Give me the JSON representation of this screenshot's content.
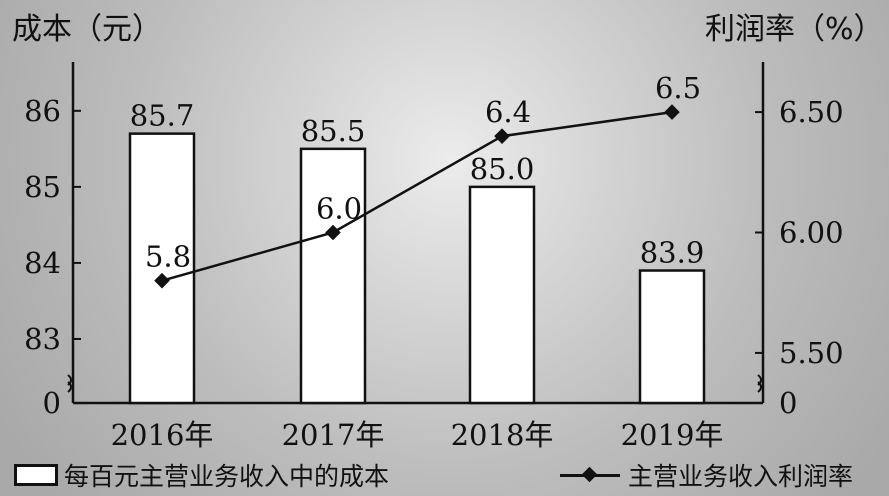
{
  "chart_data": {
    "type": "bar+line",
    "categories": [
      "2016年",
      "2017年",
      "2018年",
      "2019年"
    ],
    "left_axis": {
      "title": "成本（元）",
      "ticks": [
        0,
        83,
        84,
        85,
        86
      ],
      "range": [
        82.5,
        86.3
      ],
      "broken": true
    },
    "right_axis": {
      "title": "利润率（%）",
      "ticks": [
        "0",
        "5.50",
        "6.00",
        "6.50"
      ],
      "range": [
        5.4,
        6.6
      ],
      "broken": true
    },
    "series": [
      {
        "name": "每百元主营业务收入中的成本",
        "type": "bar",
        "axis": "left",
        "values": [
          85.7,
          85.5,
          85.0,
          83.9
        ],
        "labels": [
          "85.7",
          "85.5",
          "85.0",
          "83.9"
        ]
      },
      {
        "name": "主营业务收入利润率",
        "type": "line",
        "axis": "right",
        "values": [
          5.8,
          6.0,
          6.4,
          6.5
        ],
        "labels": [
          "5.8",
          "6.0",
          "6.4",
          "6.5"
        ]
      }
    ],
    "legend_position": "bottom",
    "grid": false
  }
}
